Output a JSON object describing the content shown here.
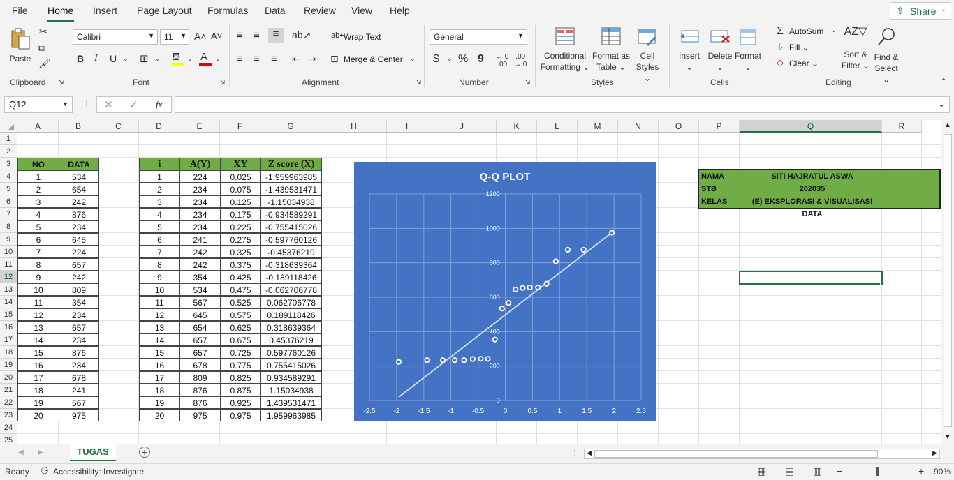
{
  "menu": {
    "tabs": [
      "File",
      "Home",
      "Insert",
      "Page Layout",
      "Formulas",
      "Data",
      "Review",
      "View",
      "Help"
    ],
    "share_label": "Share"
  },
  "ribbon": {
    "clipboard": {
      "paste": "Paste",
      "group": "Clipboard"
    },
    "font": {
      "name": "Calibri",
      "size": "11",
      "bold": "B",
      "italic": "I",
      "underline": "U",
      "group": "Font"
    },
    "alignment": {
      "wrap": "Wrap Text",
      "merge": "Merge & Center",
      "group": "Alignment"
    },
    "number": {
      "format": "General",
      "currency": "$",
      "percent": "%",
      "comma": "9",
      "group": "Number"
    },
    "styles": {
      "conditional": "Conditional",
      "conditional2": "Formatting",
      "format_table": "Format as",
      "format_table2": "Table",
      "cell_styles": "Cell",
      "cell_styles2": "Styles",
      "group": "Styles"
    },
    "cells": {
      "insert": "Insert",
      "delete": "Delete",
      "format": "Format",
      "group": "Cells"
    },
    "editing": {
      "autosum": "AutoSum",
      "fill": "Fill",
      "clear": "Clear",
      "sort": "Sort &",
      "sort2": "Filter",
      "find": "Find &",
      "find2": "Select",
      "group": "Editing"
    }
  },
  "formula_bar": {
    "name_box": "Q12",
    "fx": "fx",
    "value": ""
  },
  "grid": {
    "columns": [
      "A",
      "B",
      "C",
      "D",
      "E",
      "F",
      "G",
      "H",
      "I",
      "J",
      "K",
      "L",
      "M",
      "N",
      "O",
      "P",
      "Q",
      "R"
    ],
    "rows": [
      "1",
      "2",
      "3",
      "4",
      "5",
      "6",
      "7",
      "8",
      "9",
      "10",
      "11",
      "12",
      "13",
      "14",
      "15",
      "16",
      "17",
      "18",
      "19",
      "20",
      "21",
      "22",
      "23",
      "24",
      "25"
    ],
    "selected_cell": "Q12"
  },
  "table1": {
    "headers": [
      "NO",
      "DATA"
    ],
    "rows": [
      [
        "1",
        "534"
      ],
      [
        "2",
        "654"
      ],
      [
        "3",
        "242"
      ],
      [
        "4",
        "876"
      ],
      [
        "5",
        "234"
      ],
      [
        "6",
        "645"
      ],
      [
        "7",
        "224"
      ],
      [
        "8",
        "657"
      ],
      [
        "9",
        "242"
      ],
      [
        "10",
        "809"
      ],
      [
        "11",
        "354"
      ],
      [
        "12",
        "234"
      ],
      [
        "13",
        "657"
      ],
      [
        "14",
        "234"
      ],
      [
        "15",
        "876"
      ],
      [
        "16",
        "234"
      ],
      [
        "17",
        "678"
      ],
      [
        "18",
        "241"
      ],
      [
        "19",
        "567"
      ],
      [
        "20",
        "975"
      ]
    ]
  },
  "table2": {
    "headers": [
      "i",
      "A(Y)",
      "XY",
      "Z score (X)"
    ],
    "rows": [
      [
        "1",
        "224",
        "0.025",
        "-1.959963985"
      ],
      [
        "2",
        "234",
        "0.075",
        "-1.439531471"
      ],
      [
        "3",
        "234",
        "0.125",
        "-1.15034938"
      ],
      [
        "4",
        "234",
        "0.175",
        "-0.934589291"
      ],
      [
        "5",
        "234",
        "0.225",
        "-0.755415026"
      ],
      [
        "6",
        "241",
        "0.275",
        "-0.597760126"
      ],
      [
        "7",
        "242",
        "0.325",
        "-0.45376219"
      ],
      [
        "8",
        "242",
        "0.375",
        "-0.318639364"
      ],
      [
        "9",
        "354",
        "0.425",
        "-0.189118426"
      ],
      [
        "10",
        "534",
        "0.475",
        "-0.062706778"
      ],
      [
        "11",
        "567",
        "0.525",
        "0.062706778"
      ],
      [
        "12",
        "645",
        "0.575",
        "0.189118426"
      ],
      [
        "13",
        "654",
        "0.625",
        "0.318639364"
      ],
      [
        "14",
        "657",
        "0.675",
        "0.45376219"
      ],
      [
        "15",
        "657",
        "0.725",
        "0.597760126"
      ],
      [
        "16",
        "678",
        "0.775",
        "0.755415026"
      ],
      [
        "17",
        "809",
        "0.825",
        "0.934589291"
      ],
      [
        "18",
        "876",
        "0.875",
        "1.15034938"
      ],
      [
        "19",
        "876",
        "0.925",
        "1.439531471"
      ],
      [
        "20",
        "975",
        "0.975",
        "1.959963985"
      ]
    ]
  },
  "info": {
    "rows": [
      {
        "label": "NAMA",
        "value": "SITI HAJRATUL ASWA"
      },
      {
        "label": "STB",
        "value": "202035"
      },
      {
        "label": "KELAS",
        "value": "(E) EKSPLORASI & VISUALISASI DATA"
      }
    ]
  },
  "chart_data": {
    "type": "scatter",
    "title": "Q-Q PLOT",
    "xlim": [
      -2.5,
      2.5
    ],
    "ylim": [
      0,
      1200
    ],
    "xticks": [
      "-2.5",
      "-2",
      "-1.5",
      "-1",
      "-0.5",
      "0",
      "0.5",
      "1",
      "1.5",
      "2",
      "2.5"
    ],
    "yticks": [
      "0",
      "200",
      "400",
      "600",
      "800",
      "1000",
      "1200"
    ],
    "points": [
      [
        -1.96,
        224
      ],
      [
        -1.44,
        234
      ],
      [
        -1.15,
        234
      ],
      [
        -0.93,
        234
      ],
      [
        -0.76,
        234
      ],
      [
        -0.6,
        241
      ],
      [
        -0.45,
        242
      ],
      [
        -0.32,
        242
      ],
      [
        -0.19,
        354
      ],
      [
        -0.06,
        534
      ],
      [
        0.06,
        567
      ],
      [
        0.19,
        645
      ],
      [
        0.32,
        654
      ],
      [
        0.45,
        657
      ],
      [
        0.6,
        657
      ],
      [
        0.76,
        678
      ],
      [
        0.93,
        809
      ],
      [
        1.15,
        876
      ],
      [
        1.44,
        876
      ],
      [
        1.96,
        975
      ]
    ],
    "trendline": [
      [
        -1.96,
        20
      ],
      [
        1.96,
        975
      ]
    ],
    "grid": true,
    "background": "#4472c4"
  },
  "sheet": {
    "tab": "TUGAS"
  },
  "status": {
    "ready": "Ready",
    "accessibility": "Accessibility: Investigate",
    "zoom": "90%"
  },
  "colors": {
    "accent": "#217346",
    "header_fill": "#70ad47",
    "chart_bg": "#4472c4"
  }
}
